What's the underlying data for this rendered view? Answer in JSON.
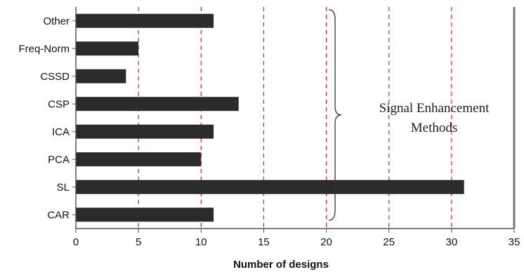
{
  "chart_data": {
    "type": "bar",
    "orientation": "horizontal",
    "title": "",
    "xlabel": "Number of designs",
    "ylabel": "",
    "categories": [
      "CAR",
      "SL",
      "PCA",
      "ICA",
      "CSP",
      "CSSD",
      "Freq-Norm",
      "Other"
    ],
    "values": [
      11,
      31,
      10,
      11,
      13,
      4,
      5,
      11
    ],
    "xlim": [
      0,
      35
    ],
    "xticks": [
      0,
      5,
      10,
      15,
      20,
      25,
      30,
      35
    ],
    "grid": {
      "vertical": true,
      "style": "dashed",
      "color": "#d9252a",
      "at": [
        5,
        10,
        15,
        20,
        25,
        30
      ]
    },
    "bar_color": "#2b2b2b",
    "legend": "none",
    "annotation": {
      "line1": "Signal Enhancement",
      "line2": "Methods",
      "brace_spans": [
        "CAR",
        "Other"
      ],
      "brace_at_x": 20.7
    }
  }
}
